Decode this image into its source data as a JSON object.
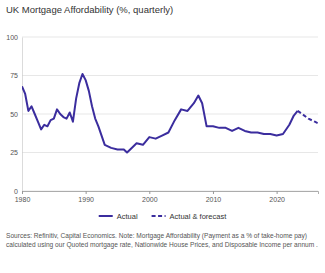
{
  "chart_data": {
    "type": "line",
    "title": "UK Mortgage Affordability (%, quarterly)",
    "annotations": [
      "Sources: Refinitiv, Capital Economics. Note: Mortgage Affordability (Payment as a % of take-home pay) calculated using our Quoted mortgage rate, Nationwide House Prices, and Disposable Income per annum ."
    ],
    "x": [
      1980,
      1980.5,
      1981,
      1981.5,
      1982,
      1982.5,
      1983,
      1983.5,
      1984,
      1984.5,
      1985,
      1985.5,
      1986,
      1986.5,
      1987,
      1987.5,
      1988,
      1988.5,
      1989,
      1989.5,
      1990,
      1990.5,
      1991,
      1991.5,
      1992,
      1992.5,
      1993,
      1994,
      1995,
      1996,
      1996.5,
      1997,
      1998,
      1999,
      2000,
      2001,
      2002,
      2003,
      2004,
      2005,
      2006,
      2007,
      2007.7,
      2008.3,
      2009,
      2010,
      2011,
      2012,
      2013,
      2014,
      2015,
      2016,
      2017,
      2018,
      2019,
      2020,
      2021,
      2022,
      2022.7,
      2023.3,
      2024,
      2025,
      2026,
      2026.5
    ],
    "series": [
      {
        "name": "Actual",
        "color": "#3b2d9e",
        "line_style": "solid",
        "values": [
          68,
          63,
          52,
          55,
          50,
          45,
          40,
          43,
          42,
          46,
          47,
          53,
          50,
          48,
          47,
          51,
          45,
          60,
          70,
          76,
          72,
          65,
          55,
          47,
          42,
          36,
          30,
          28,
          27,
          27,
          25,
          27,
          31,
          30,
          35,
          34,
          36,
          38,
          46,
          53,
          52,
          57,
          62,
          57,
          42,
          42,
          41,
          41,
          39,
          41,
          39,
          38,
          38,
          37,
          37,
          36,
          37,
          43,
          49,
          52,
          null,
          null,
          null,
          null
        ]
      },
      {
        "name": "Actual & forecast",
        "color": "#3b2d9e",
        "line_style": "dashed",
        "values": [
          null,
          null,
          null,
          null,
          null,
          null,
          null,
          null,
          null,
          null,
          null,
          null,
          null,
          null,
          null,
          null,
          null,
          null,
          null,
          null,
          null,
          null,
          null,
          null,
          null,
          null,
          null,
          null,
          null,
          null,
          null,
          null,
          null,
          null,
          null,
          null,
          null,
          null,
          null,
          null,
          null,
          null,
          null,
          null,
          null,
          null,
          null,
          null,
          null,
          null,
          null,
          null,
          null,
          null,
          null,
          null,
          null,
          null,
          null,
          52,
          50,
          47,
          45,
          44
        ]
      }
    ],
    "xlim": [
      1980,
      2026.5
    ],
    "xticks": [
      1980,
      1990,
      2000,
      2010,
      2020
    ],
    "ylim": [
      0,
      100
    ],
    "yticks": [
      0,
      25,
      50,
      75,
      100
    ],
    "grid": true,
    "legend": "bottom"
  }
}
